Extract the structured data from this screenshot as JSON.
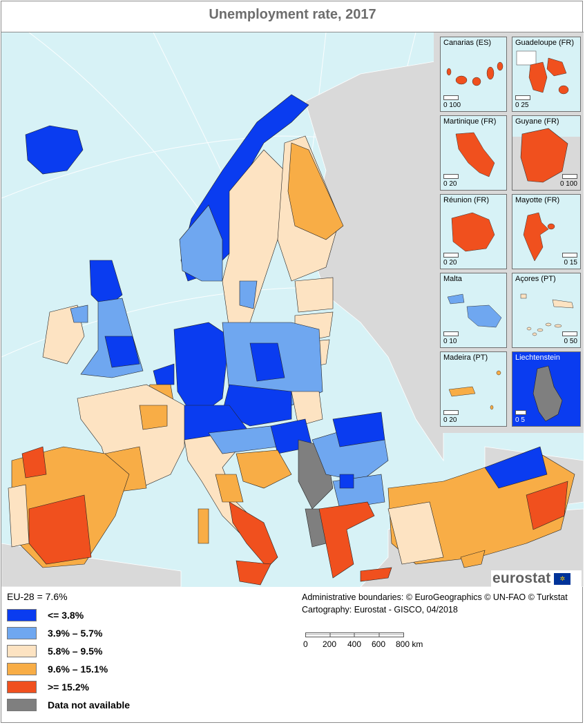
{
  "title": "Unemployment rate, 2017",
  "colors": {
    "sea": "#d7f2f6",
    "non_eu_land": "#d9d9d9",
    "le_3_8": "#0a3cf0",
    "c3_9_5_7": "#6fa7f0",
    "c5_8_9_5": "#fde3c2",
    "c9_6_15_1": "#f8ad46",
    "ge_15_2": "#f0501e",
    "na": "#7f7f7f"
  },
  "insets": [
    {
      "label": "Canarias (ES)",
      "scale": "0  100"
    },
    {
      "label": "Guadeloupe (FR)",
      "scale": "0   25"
    },
    {
      "label": "Martinique (FR)",
      "scale": "0    20"
    },
    {
      "label": "Guyane (FR)",
      "scale": "0  100"
    },
    {
      "label": "Réunion (FR)",
      "scale": "0    20"
    },
    {
      "label": "Mayotte (FR)",
      "scale": "0    15"
    },
    {
      "label": "Malta",
      "scale": "0    10"
    },
    {
      "label": "Açores (PT)",
      "scale": "0   50"
    },
    {
      "label": "Madeira (PT)",
      "scale": "0    20"
    },
    {
      "label": "Liechtenstein",
      "scale": "0  5"
    }
  ],
  "legend": {
    "header": "EU-28 = 7.6%",
    "items": [
      {
        "label": "<= 3.8%",
        "color": "#0a3cf0"
      },
      {
        "label": "3.9% – 5.7%",
        "color": "#6fa7f0"
      },
      {
        "label": "5.8% – 9.5%",
        "color": "#fde3c2"
      },
      {
        "label": "9.6% – 15.1%",
        "color": "#f8ad46"
      },
      {
        "label": ">= 15.2%",
        "color": "#f0501e"
      },
      {
        "label": "Data not available",
        "color": "#7f7f7f"
      }
    ]
  },
  "credits": {
    "line1": "Administrative boundaries: © EuroGeographics © UN-FAO © Turkstat",
    "line2": "Cartography: Eurostat - GISCO, 04/2018"
  },
  "scale": {
    "ticks": [
      "0",
      "200",
      "400",
      "600",
      "800 km"
    ]
  },
  "logo": {
    "text": "eurostat"
  }
}
